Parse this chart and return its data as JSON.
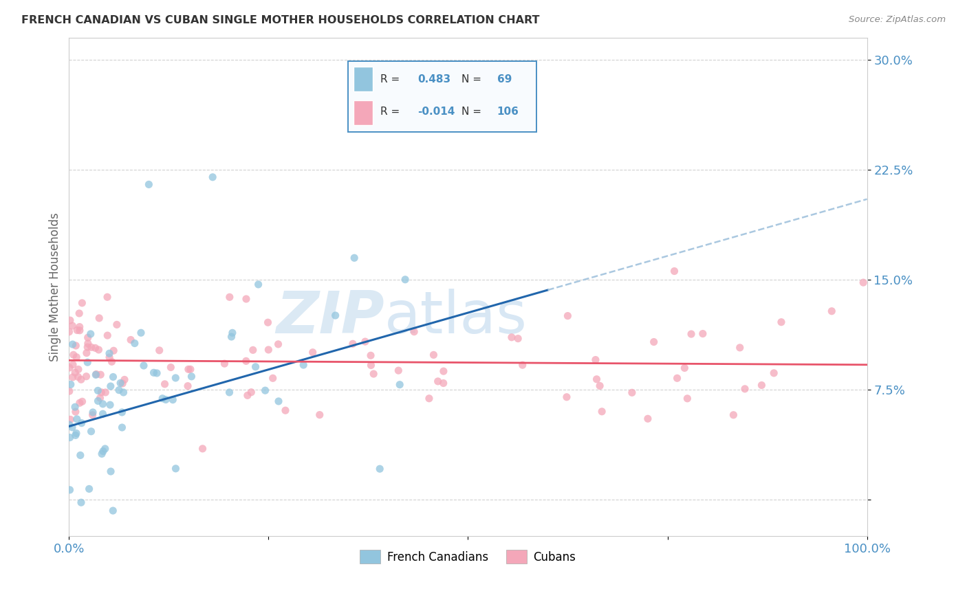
{
  "title": "FRENCH CANADIAN VS CUBAN SINGLE MOTHER HOUSEHOLDS CORRELATION CHART",
  "source": "Source: ZipAtlas.com",
  "ylabel": "Single Mother Households",
  "xlim": [
    0.0,
    1.0
  ],
  "ylim": [
    -0.025,
    0.315
  ],
  "yticks": [
    0.0,
    0.075,
    0.15,
    0.225,
    0.3
  ],
  "ytick_labels": [
    "",
    "7.5%",
    "15.0%",
    "22.5%",
    "30.0%"
  ],
  "xtick_labels": [
    "0.0%",
    "100.0%"
  ],
  "french_R": 0.483,
  "french_N": 69,
  "cuban_R": -0.014,
  "cuban_N": 106,
  "french_color": "#92c5de",
  "cuban_color": "#f4a7b9",
  "trend_french_solid_color": "#2166ac",
  "trend_french_dashed_color": "#aac8e0",
  "trend_cuban_color": "#e8546a",
  "watermark_zip_color": "#cce0f0",
  "watermark_atlas_color": "#b8d4ec",
  "background_color": "#ffffff",
  "grid_color": "#cccccc",
  "title_color": "#333333",
  "axis_label_color": "#4a90c4",
  "ylabel_color": "#666666",
  "source_color": "#888888",
  "legend_box_color": "#f0f4f8",
  "legend_border_color": "#4a90c4",
  "french_trend_intercept": 0.05,
  "french_trend_slope": 0.155,
  "cuban_trend_intercept": 0.095,
  "cuban_trend_slope": -0.003,
  "french_trend_solid_end": 0.6,
  "french_trend_dashed_start": 0.6
}
